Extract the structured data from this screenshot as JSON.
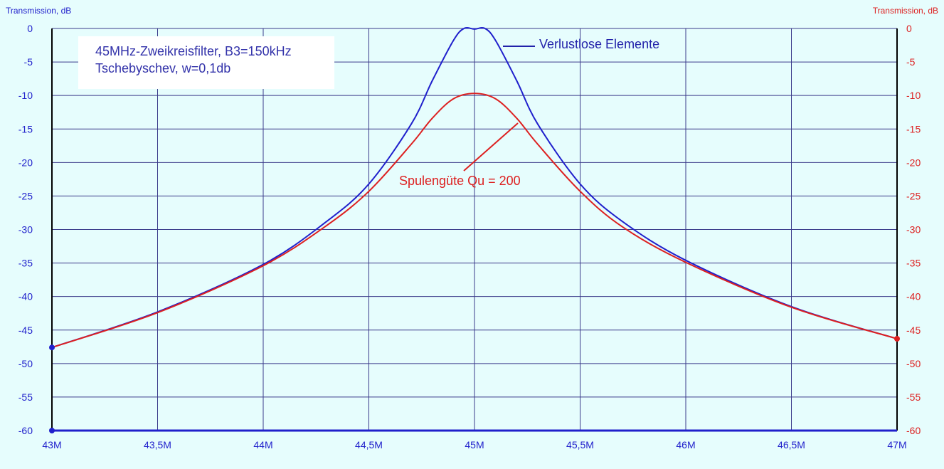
{
  "chart_data": {
    "type": "line",
    "y_axis_left_label": "Transmission, dB",
    "y_axis_right_label": "Transmission, dB",
    "x_tick_labels": [
      "43M",
      "43,5M",
      "44M",
      "44,5M",
      "45M",
      "45,5M",
      "46M",
      "46,5M",
      "47M"
    ],
    "x_ticks": [
      43,
      43.5,
      44,
      44.5,
      45,
      45.5,
      46,
      46.5,
      47
    ],
    "xlim": [
      43,
      47
    ],
    "y_ticks": [
      0,
      -5,
      -10,
      -15,
      -20,
      -25,
      -30,
      -35,
      -40,
      -45,
      -50,
      -55,
      -60
    ],
    "ylim": [
      -60,
      0
    ],
    "grid": true,
    "note": {
      "line1": "45MHz-Zweikreisfilter, B3=150kHz",
      "line2": "Tschebyschev, w=0,1db"
    },
    "series": [
      {
        "name": "Verlustlose Elemente",
        "color": "#2020cc",
        "x": [
          43.0,
          43.5,
          44.0,
          44.3,
          44.5,
          44.7,
          44.8,
          44.9,
          44.95,
          45.0,
          45.05,
          45.1,
          45.2,
          45.3,
          45.5,
          45.7,
          46.0,
          46.5,
          47.0
        ],
        "y": [
          -47.6,
          -42.3,
          -35.2,
          -28.8,
          -23.2,
          -14.3,
          -7.8,
          -1.8,
          0,
          -0.1,
          0,
          -1.8,
          -7.8,
          -14.3,
          -23.2,
          -28.8,
          -34.6,
          -41.5,
          -46.3
        ]
      },
      {
        "name": "Spulengüte Qu = 200",
        "color": "#dd2020",
        "x": [
          43.0,
          43.5,
          44.0,
          44.3,
          44.5,
          44.7,
          44.8,
          44.9,
          45.0,
          45.1,
          45.2,
          45.3,
          45.5,
          45.7,
          46.0,
          46.5,
          47.0
        ],
        "y": [
          -47.6,
          -42.4,
          -35.4,
          -29.4,
          -24.3,
          -17.3,
          -13.4,
          -10.5,
          -9.7,
          -10.5,
          -13.4,
          -17.3,
          -24.3,
          -29.6,
          -34.9,
          -41.6,
          -46.3
        ]
      }
    ],
    "markers_left_value": [
      -47.6,
      -60
    ],
    "marker_right_value": -46.3
  },
  "colors": {
    "blue": "#2020cc",
    "red": "#dd2020",
    "grid": "#3a3a8a",
    "background": "#e6fdfd"
  }
}
